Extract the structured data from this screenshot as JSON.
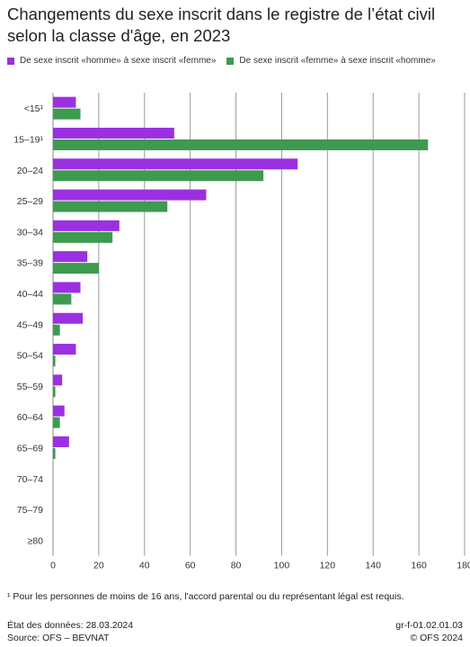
{
  "title": "Changements du sexe inscrit dans le registre de l’état civil selon la classe d'âge, en 2023",
  "chart_data": {
    "type": "bar",
    "orientation": "horizontal",
    "title": "Changements du sexe inscrit dans le registre de l’état civil selon la classe d'âge, en 2023",
    "categories": [
      "<15¹",
      "15–19¹",
      "20–24",
      "25–29",
      "30–34",
      "35–39",
      "40–44",
      "45–49",
      "50–54",
      "55–59",
      "60–64",
      "65–69",
      "70–74",
      "75–79",
      "≥80"
    ],
    "series": [
      {
        "name": "De sexe inscrit «homme» à sexe inscrit «femme»",
        "color": "#9b30e0",
        "values": [
          10,
          53,
          107,
          67,
          29,
          15,
          12,
          13,
          10,
          4,
          5,
          7,
          0,
          0,
          0
        ]
      },
      {
        "name": "De sexe inscrit «femme» à sexe inscrit «homme»",
        "color": "#3d9a4f",
        "values": [
          12,
          164,
          92,
          50,
          26,
          20,
          8,
          3,
          1,
          1,
          3,
          1,
          0,
          0,
          0
        ]
      }
    ],
    "xlim": [
      0,
      180
    ],
    "xticks": [
      0,
      20,
      40,
      60,
      80,
      100,
      120,
      140,
      160,
      180
    ],
    "grid": true,
    "legend": "top-left"
  },
  "footnote": "¹ Pour les personnes de moins de 16 ans, l'accord parental ou du représentant légal est requis.",
  "meta": {
    "date": "État des données: 28.03.2024",
    "source": "Source: OFS – BEVNAT",
    "code": "gr-f-01.02.01.03",
    "copyright": "© OFS 2024"
  }
}
